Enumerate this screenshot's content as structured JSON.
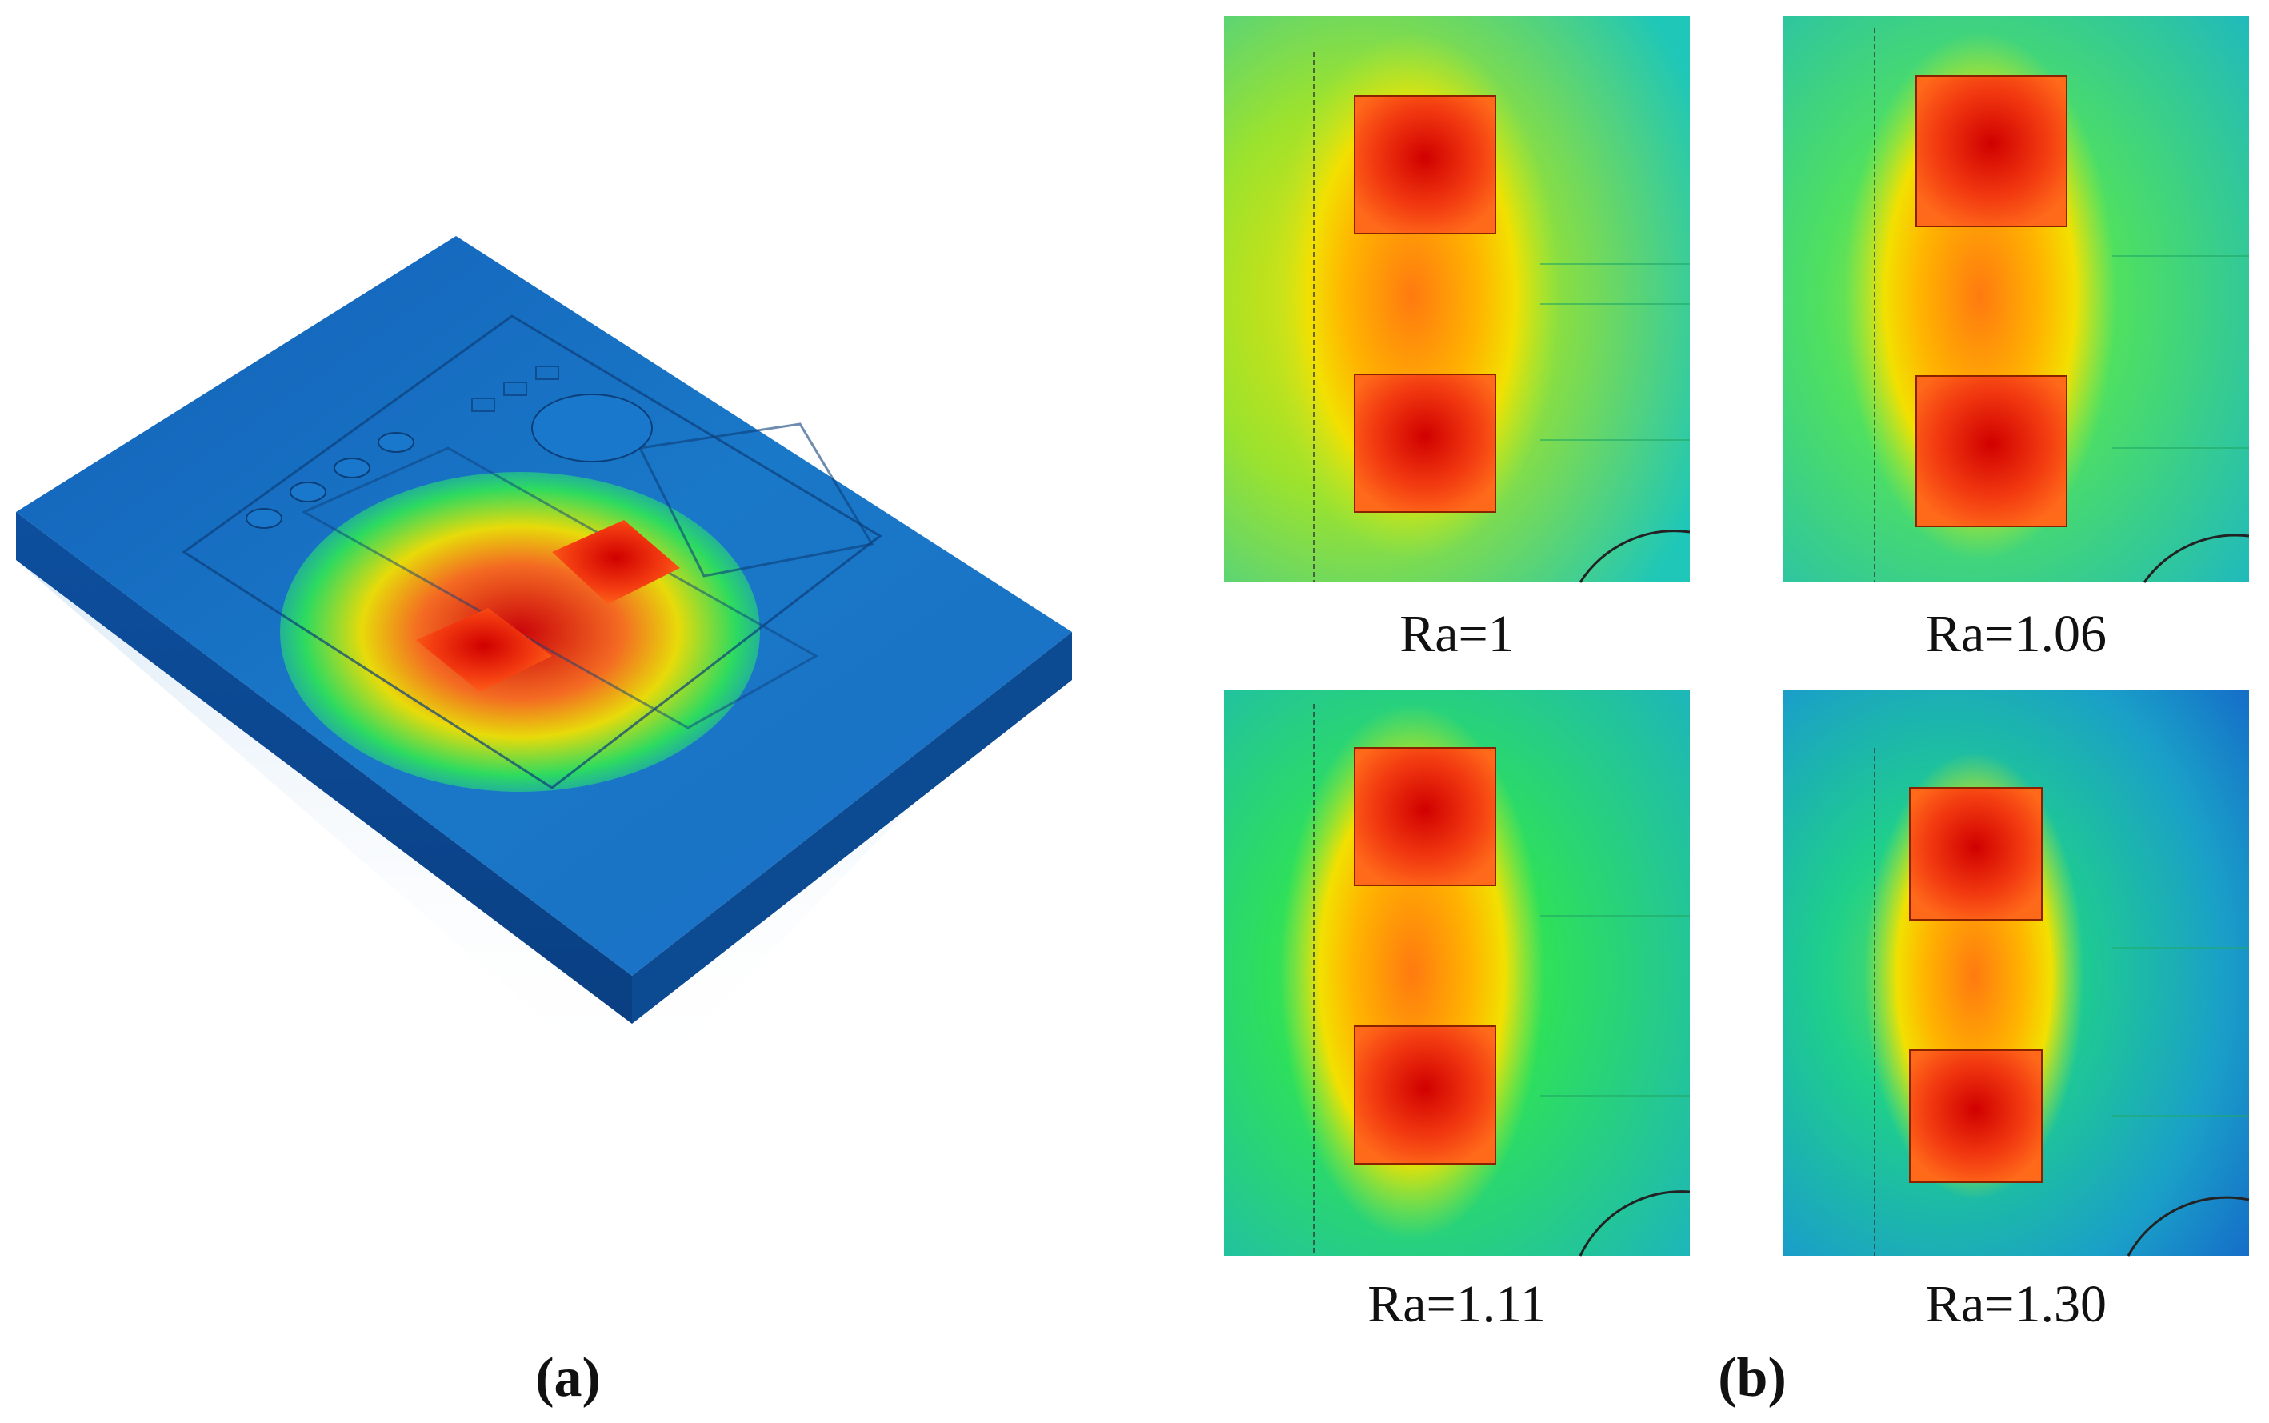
{
  "panel_a": {
    "label": "(a)",
    "description_icon": "pcb-thermal-3d-icon"
  },
  "panel_b": {
    "label": "(b)",
    "maps": [
      {
        "ra": "Ra=1"
      },
      {
        "ra": "Ra=1.06"
      },
      {
        "ra": "Ra=1.11"
      },
      {
        "ra": "Ra=1.30"
      }
    ]
  },
  "colors": {
    "hot": "#d40000",
    "warm": "#ff6a1a",
    "mid": "#f2e000",
    "green": "#2ee05a",
    "cool": "#1ec7b8",
    "cold": "#1466c8",
    "board": "#1a6fc4"
  }
}
